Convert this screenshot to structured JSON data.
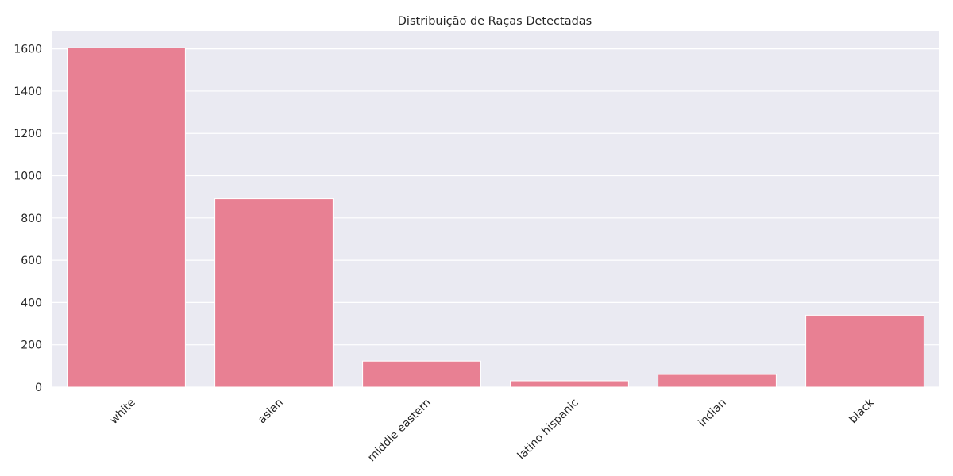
{
  "colors": {
    "bar": "#E88093",
    "plot_bg": "#EAEAF2",
    "grid": "#FFFFFF",
    "text": "#262626"
  },
  "chart_data": {
    "type": "bar",
    "title": "Distribuição de Raças Detectadas",
    "xlabel": "",
    "ylabel": "",
    "categories": [
      "white",
      "asian",
      "middle eastern",
      "latino hispanic",
      "indian",
      "black"
    ],
    "values": [
      1605,
      891,
      123,
      30,
      60,
      340
    ],
    "ylim": [
      0,
      1685
    ],
    "yticks": [
      0,
      200,
      400,
      600,
      800,
      1000,
      1200,
      1400,
      1600
    ],
    "grid": true,
    "x_tick_rotation_deg": 45
  }
}
